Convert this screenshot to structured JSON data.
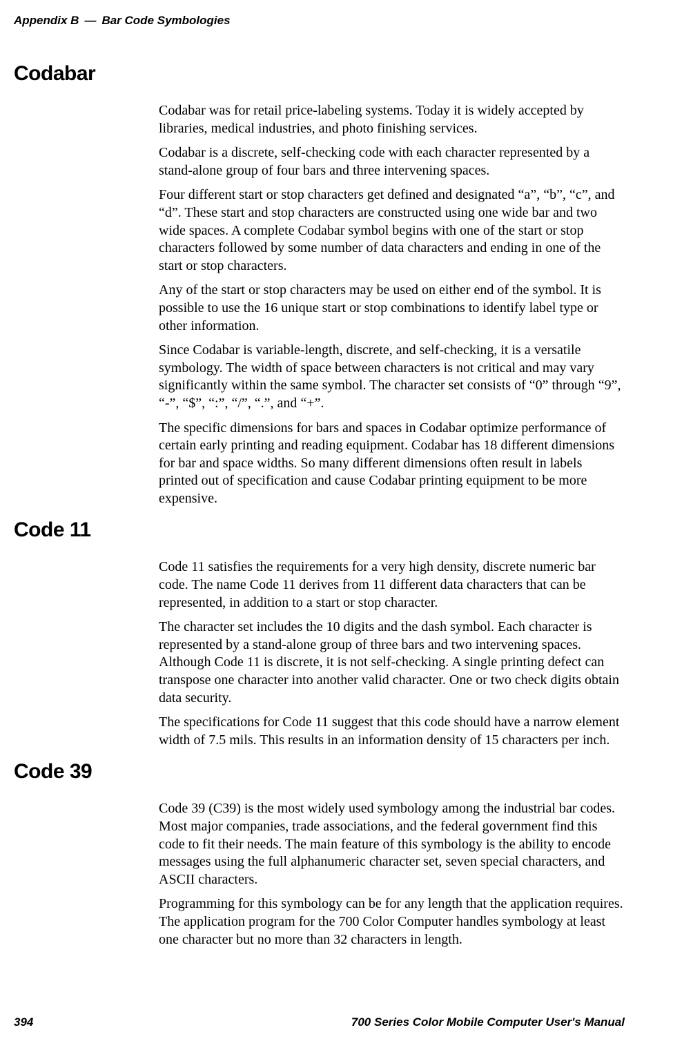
{
  "header": {
    "appendix_label": "Appendix B",
    "separator": "—",
    "appendix_title": "Bar Code Symbologies"
  },
  "sections": {
    "codabar": {
      "heading": "Codabar",
      "paragraphs": {
        "p1": "Codabar was for retail price-labeling systems. Today it is widely accepted by libraries, medical industries, and photo finishing services.",
        "p2": "Codabar is a discrete, self-checking code with each character represented by a stand-alone group of four bars and three intervening spaces.",
        "p3": "Four different start or stop characters get defined and designated “a”, “b”, “c”, and “d”. These start and stop characters are constructed using one wide bar and two wide spaces. A complete Codabar symbol begins with one of the start or stop characters followed by some number of data characters and ending in one of the start or stop characters.",
        "p4": "Any of the start or stop characters may be used on either end of the symbol. It is possible to use the 16 unique start or stop combinations to identify label type or other information.",
        "p5": "Since Codabar is variable-length, discrete, and self-checking, it is a versatile symbology. The width of space between characters is not critical and may vary significantly within the same symbol. The character set consists of “0” through “9”, “-”, “$”, “:”, “/”, “.”, and “+”.",
        "p6": "The specific dimensions for bars and spaces in Codabar optimize performance of certain early printing and reading equipment. Codabar has 18 different dimensions for bar and space widths. So many different dimensions often result in labels printed out of specification and cause Codabar printing equipment to be more expensive."
      }
    },
    "code11": {
      "heading": "Code 11",
      "paragraphs": {
        "p1": "Code 11 satisfies the requirements for a very high density, discrete numeric bar code. The name Code 11 derives from 11 different data characters that can be represented, in addition to a start or stop character.",
        "p2": "The character set includes the 10 digits and the dash symbol. Each character is represented by a stand-alone group of three bars and two intervening spaces. Although Code 11 is discrete, it is not self-checking. A single printing defect can transpose one character into another valid character. One or two check digits obtain data security.",
        "p3": "The specifications for Code 11 suggest that this code should have a narrow element width of 7.5 mils. This results in an information density of 15 characters per inch."
      }
    },
    "code39": {
      "heading": "Code 39",
      "paragraphs": {
        "p1": "Code 39 (C39) is the most widely used symbology among the industrial bar codes. Most major companies, trade associations, and the federal government find this code to fit their needs. The main feature of this symbology is the ability to encode messages using the full alphanumeric character set, seven special characters, and ASCII characters.",
        "p2": "Programming for this symbology can be for any length that the application requires. The application program for the 700 Color Computer handles symbology at least one character but no more than 32 characters in length."
      }
    }
  },
  "footer": {
    "page_number": "394",
    "manual_title": "700 Series Color Mobile Computer User's Manual"
  }
}
